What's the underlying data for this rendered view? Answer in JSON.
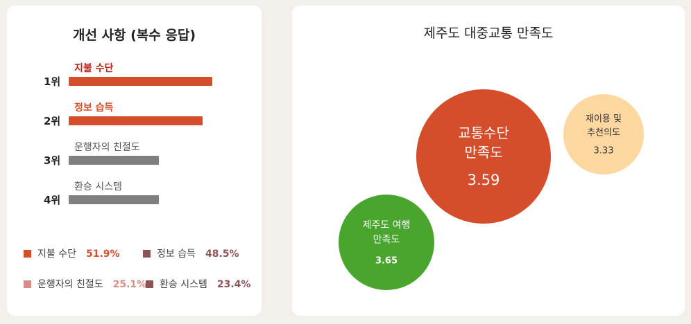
{
  "colors": {
    "accent_dark": "#d44e2c",
    "accent_red_text": "#c0392b",
    "gray": "#7f7f7f",
    "bubble_satisfaction": "#d44e2c",
    "bubble_reuse": "#fdd7a0",
    "bubble_travel": "#4aa52e"
  },
  "left": {
    "title": "개선 사항 (복수 응답)",
    "legend": [
      {
        "label": "지불 수단",
        "pct": "51.9%",
        "color": "#d44e2c",
        "pct_color": "#d44e2c"
      },
      {
        "label": "정보 습득",
        "pct": "48.5%",
        "color": "#8c5555",
        "pct_color": "#8c5555"
      },
      {
        "label": "운행자의 친절도",
        "pct": "25.1%",
        "color": "#d98c88",
        "pct_color": "#d98c88"
      },
      {
        "label": "환승 시스템",
        "pct": "23.4%",
        "color": "#8c5555",
        "pct_color": "#8c5555"
      }
    ]
  },
  "right": {
    "title": "제주도 대중교통 만족도"
  },
  "chart_data": [
    {
      "type": "bar",
      "orientation": "horizontal",
      "title": "개선 사항 (복수 응답)",
      "categories": [
        "지불 수단",
        "정보 습득",
        "운행자의 친절도",
        "환승 시스템"
      ],
      "ranks": [
        "1위",
        "2위",
        "3위",
        "4위"
      ],
      "values": [
        51.9,
        48.5,
        25.1,
        23.4
      ],
      "unit": "%",
      "bar_colors": [
        "#d44e2c",
        "#d44e2c",
        "#7f7f7f",
        "#7f7f7f"
      ],
      "label_colors": [
        "#b8231a",
        "#d44e2c",
        "#555555",
        "#555555"
      ]
    },
    {
      "type": "scatter",
      "subtype": "bubble",
      "title": "제주도 대중교통 만족도",
      "points": [
        {
          "label_lines": [
            "교통수단",
            "만족도"
          ],
          "value": "3.59",
          "v": 3.59,
          "color": "#d44e2c",
          "text_color": "#ffffff"
        },
        {
          "label_lines": [
            "재이용 및",
            "추천의도"
          ],
          "value": "3.33",
          "v": 3.33,
          "color": "#fdd7a0",
          "text_color": "#333333"
        },
        {
          "label_lines": [
            "제주도 여행",
            "만족도"
          ],
          "value": "3.65",
          "v": 3.65,
          "color": "#4aa52e",
          "text_color": "#ffffff"
        }
      ]
    }
  ]
}
